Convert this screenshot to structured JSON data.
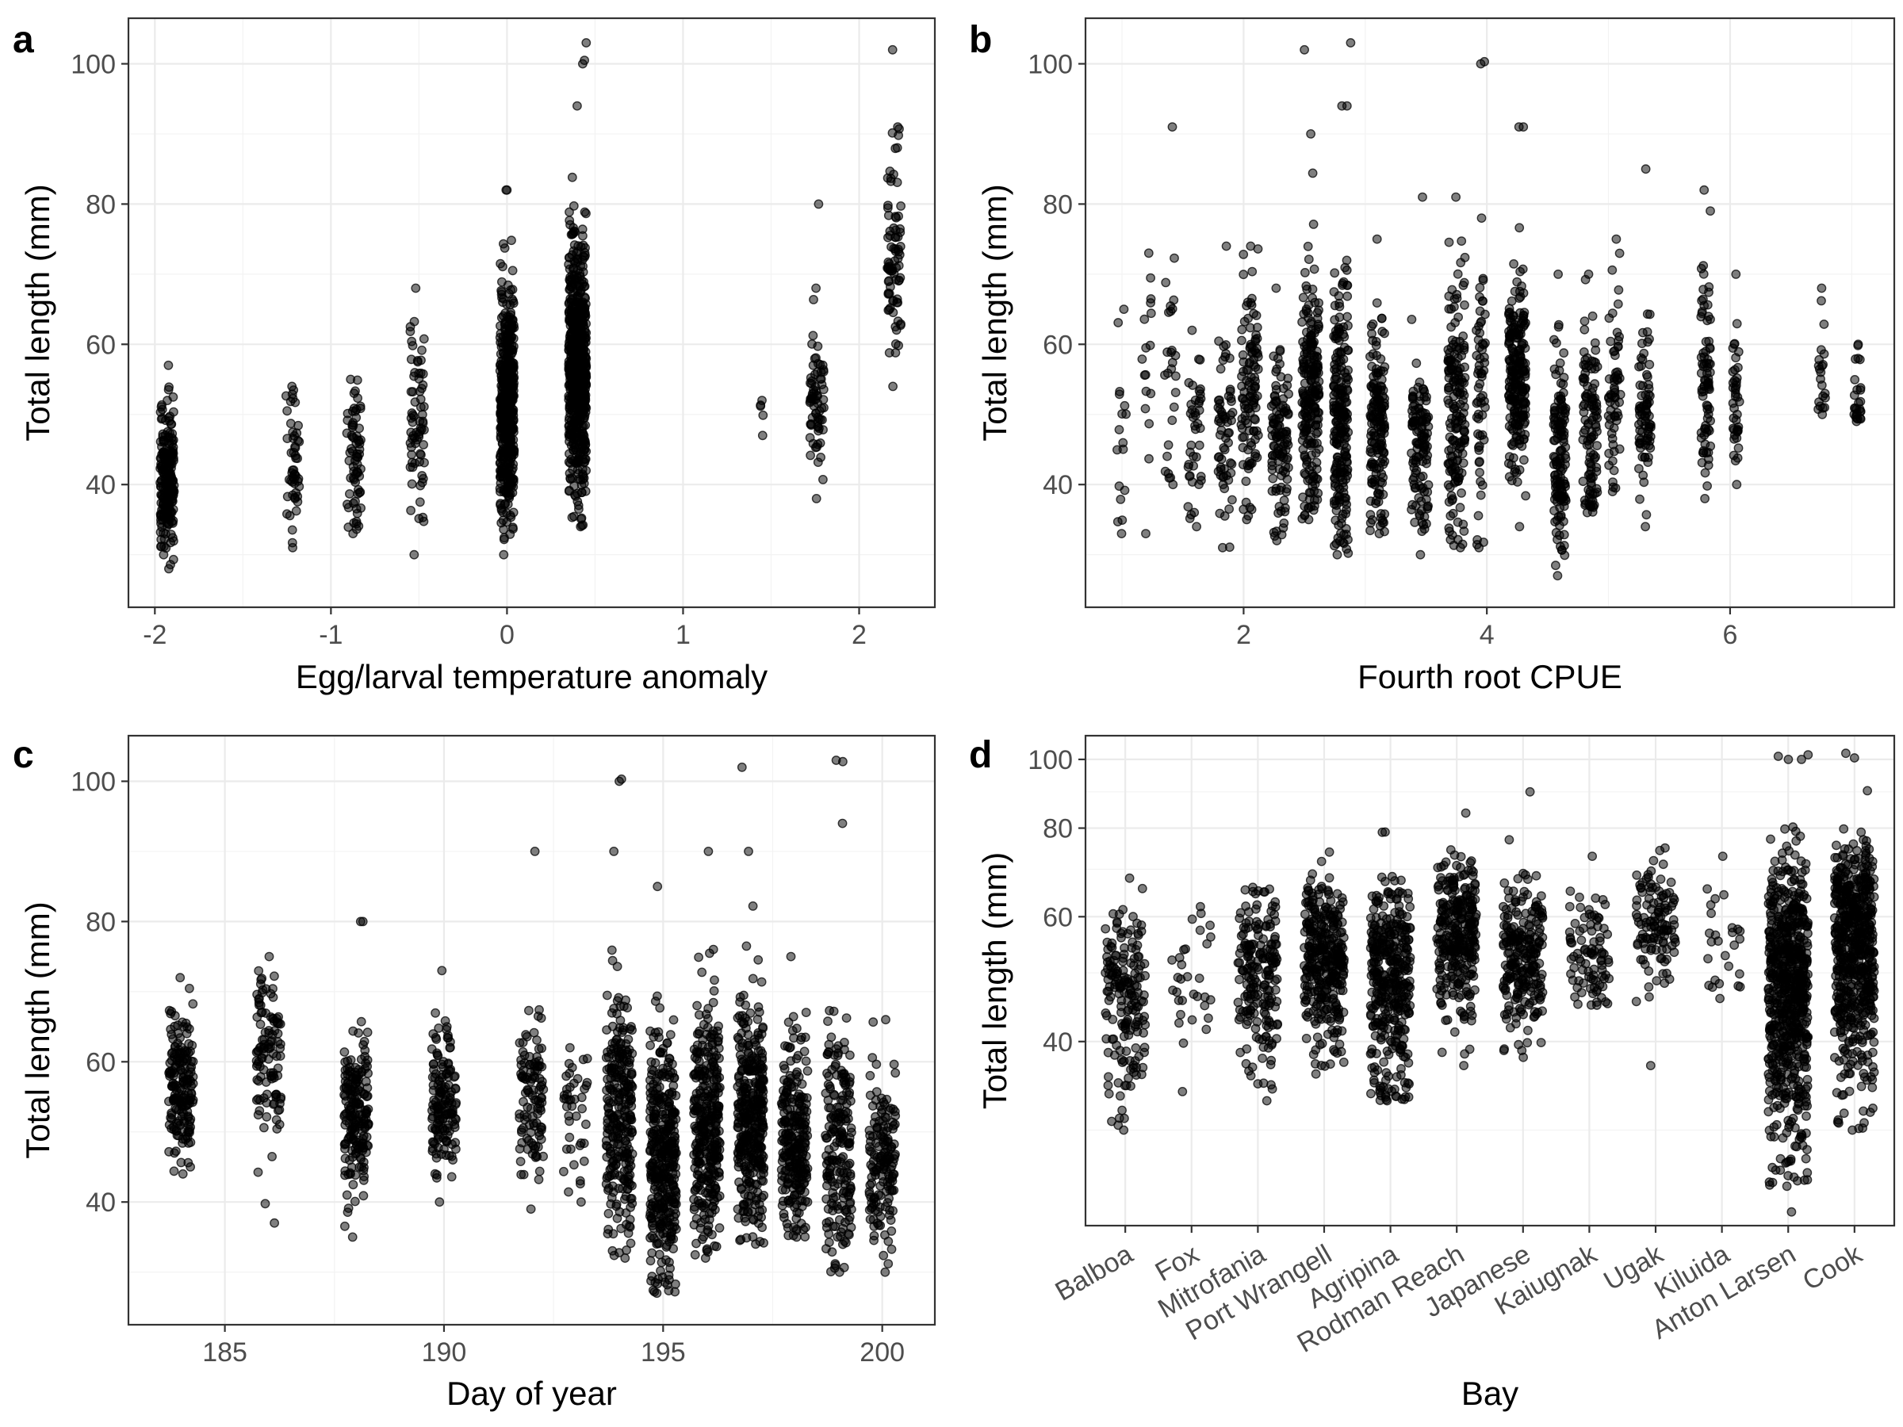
{
  "chart_data": [
    {
      "panel": "a",
      "type": "scatter",
      "xlabel": "Egg/larval temperature anomaly",
      "ylabel": "Total length (mm)",
      "xlim": [
        -2.15,
        2.43
      ],
      "ylim": [
        22.5,
        106.5
      ],
      "xticks": [
        -2,
        -1,
        0,
        1,
        2
      ],
      "xtick_labels": [
        "-2",
        "-1",
        "0",
        "1",
        "2"
      ],
      "yticks": [
        40,
        60,
        80,
        100
      ],
      "ytick_labels": [
        "40",
        "60",
        "80",
        "100"
      ],
      "grid": true,
      "clusters": [
        {
          "x": -1.93,
          "jitter": 0.04,
          "n": 220,
          "mean": 41,
          "sd": 5,
          "min": 28,
          "max": 57
        },
        {
          "x": -1.22,
          "jitter": 0.04,
          "n": 50,
          "mean": 42,
          "sd": 5,
          "min": 31,
          "max": 54
        },
        {
          "x": -0.87,
          "jitter": 0.04,
          "n": 70,
          "mean": 44,
          "sd": 5,
          "min": 33,
          "max": 55
        },
        {
          "x": -0.51,
          "jitter": 0.04,
          "n": 70,
          "mean": 50,
          "sd": 7,
          "min": 30,
          "max": 68
        },
        {
          "x": 0.0,
          "jitter": 0.04,
          "n": 520,
          "mean": 51,
          "sd": 8,
          "min": 30,
          "max": 82
        },
        {
          "x": 0.4,
          "jitter": 0.05,
          "n": 640,
          "mean": 57,
          "sd": 9,
          "min": 34,
          "max": 94
        },
        {
          "x": 1.45,
          "jitter": 0.02,
          "n": 3,
          "mean": 50,
          "sd": 2.5,
          "min": 47,
          "max": 52
        },
        {
          "x": 1.76,
          "jitter": 0.04,
          "n": 70,
          "mean": 52,
          "sd": 6,
          "min": 38,
          "max": 68
        },
        {
          "x": 2.2,
          "jitter": 0.04,
          "n": 80,
          "mean": 73,
          "sd": 7,
          "min": 54,
          "max": 91
        }
      ],
      "points": [
        [
          0.45,
          103
        ],
        [
          0.43,
          100
        ],
        [
          0.44,
          100.5
        ],
        [
          2.19,
          102
        ],
        [
          0.0,
          82
        ],
        [
          1.77,
          80
        ]
      ]
    },
    {
      "panel": "b",
      "type": "scatter",
      "xlabel": "Fourth root CPUE",
      "ylabel": "Total length (mm)",
      "xlim": [
        0.7,
        7.35
      ],
      "ylim": [
        22.5,
        106.5
      ],
      "xticks": [
        2,
        4,
        6
      ],
      "xtick_labels": [
        "2",
        "4",
        "6"
      ],
      "yticks": [
        40,
        60,
        80,
        100
      ],
      "ytick_labels": [
        "40",
        "60",
        "80",
        "100"
      ],
      "grid": true,
      "clusters": [
        {
          "x": 1.0,
          "jitter": 0.04,
          "n": 15,
          "mean": 48,
          "sd": 9,
          "min": 33,
          "max": 65
        },
        {
          "x": 1.2,
          "jitter": 0.04,
          "n": 15,
          "mean": 56,
          "sd": 10,
          "min": 33,
          "max": 73
        },
        {
          "x": 1.4,
          "jitter": 0.05,
          "n": 25,
          "mean": 55,
          "sd": 9,
          "min": 40,
          "max": 91
        },
        {
          "x": 1.6,
          "jitter": 0.06,
          "n": 40,
          "mean": 44,
          "sd": 6,
          "min": 34,
          "max": 62
        },
        {
          "x": 1.85,
          "jitter": 0.06,
          "n": 60,
          "mean": 47,
          "sd": 7,
          "min": 31,
          "max": 74
        },
        {
          "x": 2.05,
          "jitter": 0.07,
          "n": 110,
          "mean": 54,
          "sd": 9,
          "min": 35,
          "max": 74
        },
        {
          "x": 2.3,
          "jitter": 0.07,
          "n": 110,
          "mean": 46,
          "sd": 6,
          "min": 32,
          "max": 68
        },
        {
          "x": 2.55,
          "jitter": 0.07,
          "n": 220,
          "mean": 52,
          "sd": 9,
          "min": 35,
          "max": 90
        },
        {
          "x": 2.8,
          "jitter": 0.06,
          "n": 220,
          "mean": 50,
          "sd": 10,
          "min": 30,
          "max": 94
        },
        {
          "x": 3.1,
          "jitter": 0.06,
          "n": 160,
          "mean": 48,
          "sd": 8,
          "min": 33,
          "max": 75
        },
        {
          "x": 3.45,
          "jitter": 0.07,
          "n": 120,
          "mean": 46,
          "sd": 6,
          "min": 30,
          "max": 81
        },
        {
          "x": 3.75,
          "jitter": 0.07,
          "n": 170,
          "mean": 51,
          "sd": 9,
          "min": 31,
          "max": 81
        },
        {
          "x": 3.95,
          "jitter": 0.04,
          "n": 60,
          "mean": 51,
          "sd": 9,
          "min": 31,
          "max": 78
        },
        {
          "x": 4.25,
          "jitter": 0.07,
          "n": 220,
          "mean": 55,
          "sd": 7,
          "min": 34,
          "max": 91
        },
        {
          "x": 4.6,
          "jitter": 0.05,
          "n": 140,
          "mean": 44,
          "sd": 7,
          "min": 27,
          "max": 70
        },
        {
          "x": 4.85,
          "jitter": 0.06,
          "n": 110,
          "mean": 49,
          "sd": 8,
          "min": 36,
          "max": 70
        },
        {
          "x": 5.05,
          "jitter": 0.05,
          "n": 60,
          "mean": 53,
          "sd": 7,
          "min": 39,
          "max": 75
        },
        {
          "x": 5.3,
          "jitter": 0.05,
          "n": 80,
          "mean": 50,
          "sd": 7,
          "min": 34,
          "max": 85
        },
        {
          "x": 5.8,
          "jitter": 0.04,
          "n": 80,
          "mean": 55,
          "sd": 8,
          "min": 38,
          "max": 82
        },
        {
          "x": 6.05,
          "jitter": 0.03,
          "n": 40,
          "mean": 52,
          "sd": 5,
          "min": 40,
          "max": 70
        },
        {
          "x": 6.75,
          "jitter": 0.04,
          "n": 20,
          "mean": 57,
          "sd": 5,
          "min": 50,
          "max": 68
        },
        {
          "x": 7.05,
          "jitter": 0.03,
          "n": 25,
          "mean": 53,
          "sd": 4,
          "min": 49,
          "max": 60
        }
      ],
      "points": [
        [
          2.5,
          102
        ],
        [
          2.88,
          103
        ],
        [
          3.95,
          100
        ],
        [
          3.98,
          100.3
        ],
        [
          4.3,
          91
        ],
        [
          2.85,
          94
        ]
      ]
    },
    {
      "panel": "c",
      "type": "scatter",
      "xlabel": "Day of year",
      "ylabel": "Total length (mm)",
      "xlim": [
        182.8,
        201.2
      ],
      "ylim": [
        22.5,
        106.5
      ],
      "xticks": [
        185,
        190,
        195,
        200
      ],
      "xtick_labels": [
        "185",
        "190",
        "195",
        "200"
      ],
      "yticks": [
        40,
        60,
        80,
        100
      ],
      "ytick_labels": [
        "40",
        "60",
        "80",
        "100"
      ],
      "grid": true,
      "clusters": [
        {
          "x": 184.0,
          "jitter": 0.28,
          "n": 180,
          "mean": 57,
          "sd": 5,
          "min": 44,
          "max": 72
        },
        {
          "x": 186.0,
          "jitter": 0.28,
          "n": 110,
          "mean": 60,
          "sd": 6,
          "min": 37,
          "max": 75
        },
        {
          "x": 188.0,
          "jitter": 0.28,
          "n": 190,
          "mean": 53,
          "sd": 6,
          "min": 35,
          "max": 80
        },
        {
          "x": 190.0,
          "jitter": 0.28,
          "n": 150,
          "mean": 54,
          "sd": 5,
          "min": 40,
          "max": 73
        },
        {
          "x": 192.0,
          "jitter": 0.28,
          "n": 110,
          "mean": 55,
          "sd": 6,
          "min": 39,
          "max": 90
        },
        {
          "x": 193.0,
          "jitter": 0.28,
          "n": 40,
          "mean": 52,
          "sd": 6,
          "min": 40,
          "max": 62
        },
        {
          "x": 194.0,
          "jitter": 0.3,
          "n": 280,
          "mean": 52,
          "sd": 9,
          "min": 32,
          "max": 90
        },
        {
          "x": 195.0,
          "jitter": 0.3,
          "n": 380,
          "mean": 47,
          "sd": 9,
          "min": 27,
          "max": 85
        },
        {
          "x": 196.0,
          "jitter": 0.3,
          "n": 330,
          "mean": 51,
          "sd": 9,
          "min": 32,
          "max": 90
        },
        {
          "x": 197.0,
          "jitter": 0.3,
          "n": 360,
          "mean": 52,
          "sd": 8,
          "min": 34,
          "max": 90
        },
        {
          "x": 198.0,
          "jitter": 0.3,
          "n": 260,
          "mean": 49,
          "sd": 7,
          "min": 35,
          "max": 75
        },
        {
          "x": 199.0,
          "jitter": 0.3,
          "n": 200,
          "mean": 47,
          "sd": 8,
          "min": 30,
          "max": 94
        },
        {
          "x": 200.0,
          "jitter": 0.3,
          "n": 160,
          "mean": 46,
          "sd": 6,
          "min": 30,
          "max": 66
        }
      ],
      "points": [
        [
          194.0,
          100
        ],
        [
          194.05,
          100.3
        ],
        [
          196.8,
          102
        ],
        [
          198.95,
          103
        ],
        [
          199.1,
          102.8
        ],
        [
          188.15,
          80
        ]
      ]
    },
    {
      "panel": "d",
      "type": "scatter",
      "xlabel": "Bay",
      "ylabel": "Total length (mm)",
      "yscale": "log",
      "ylim": [
        22,
        108
      ],
      "categories": [
        "Balboa",
        "Fox",
        "Mitrofania",
        "Port Wrangell",
        "Agripina",
        "Rodman Reach",
        "Japanese",
        "Kaiugnak",
        "Ugak",
        "Kiluida",
        "Anton Larsen",
        "Cook"
      ],
      "yticks": [
        40,
        60,
        80,
        100
      ],
      "ytick_labels": [
        "40",
        "60",
        "80",
        "100"
      ],
      "grid": true,
      "clusters": [
        {
          "x": 1,
          "jitter": 0.3,
          "n": 180,
          "mean": 46,
          "sd": 7,
          "min": 30,
          "max": 68
        },
        {
          "x": 2,
          "jitter": 0.3,
          "n": 30,
          "mean": 49,
          "sd": 7,
          "min": 34,
          "max": 62
        },
        {
          "x": 3,
          "jitter": 0.3,
          "n": 200,
          "mean": 50,
          "sd": 7,
          "min": 33,
          "max": 66
        },
        {
          "x": 4,
          "jitter": 0.3,
          "n": 340,
          "mean": 52,
          "sd": 7,
          "min": 36,
          "max": 74
        },
        {
          "x": 5,
          "jitter": 0.3,
          "n": 380,
          "mean": 50,
          "sd": 8,
          "min": 33,
          "max": 79
        },
        {
          "x": 6,
          "jitter": 0.3,
          "n": 300,
          "mean": 56,
          "sd": 7,
          "min": 37,
          "max": 84
        },
        {
          "x": 7,
          "jitter": 0.3,
          "n": 240,
          "mean": 53,
          "sd": 7,
          "min": 38,
          "max": 90
        },
        {
          "x": 8,
          "jitter": 0.3,
          "n": 90,
          "mean": 53,
          "sd": 5,
          "min": 45,
          "max": 73
        },
        {
          "x": 9,
          "jitter": 0.3,
          "n": 120,
          "mean": 59,
          "sd": 6,
          "min": 37,
          "max": 75
        },
        {
          "x": 10,
          "jitter": 0.3,
          "n": 25,
          "mean": 57,
          "sd": 7,
          "min": 46,
          "max": 73
        },
        {
          "x": 11,
          "jitter": 0.3,
          "n": 700,
          "mean": 48,
          "sd": 11,
          "min": 25,
          "max": 100
        },
        {
          "x": 12,
          "jitter": 0.3,
          "n": 600,
          "mean": 55,
          "sd": 10,
          "min": 30,
          "max": 102
        }
      ],
      "points": [
        [
          10.85,
          101
        ],
        [
          11.2,
          100
        ],
        [
          11.3,
          101.5
        ],
        [
          12.0,
          100.5
        ],
        [
          11.05,
          23
        ]
      ]
    }
  ]
}
